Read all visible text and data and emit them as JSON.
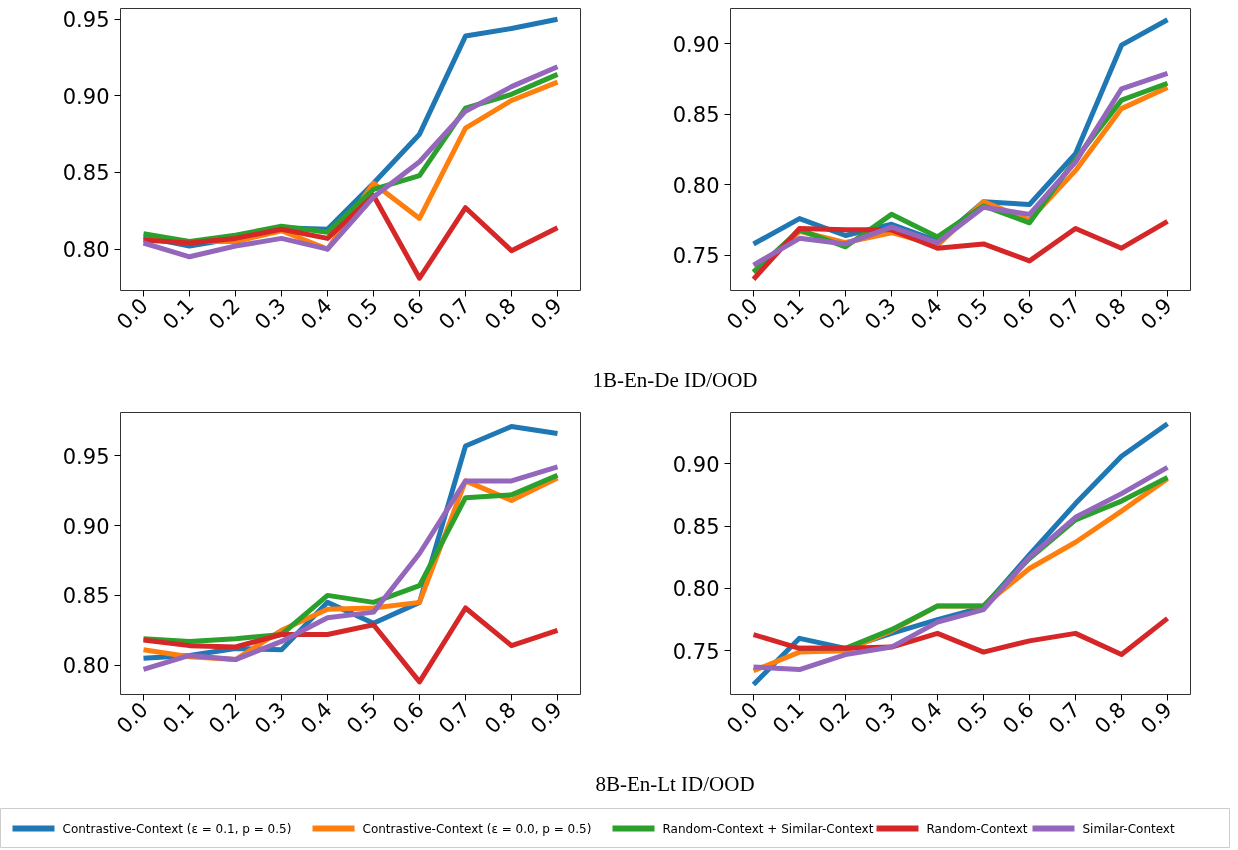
{
  "chart_data": [
    {
      "type": "line",
      "line_style": "solid",
      "grid": false,
      "legend": false,
      "categories": [
        "0.0",
        "0.1",
        "0.2",
        "0.3",
        "0.4",
        "0.5",
        "0.6",
        "0.7",
        "0.8",
        "0.9"
      ],
      "ylim": [
        0.773,
        0.957
      ],
      "yticks": [
        {
          "value": 0.8,
          "label": "0.80"
        },
        {
          "value": 0.85,
          "label": "0.85"
        },
        {
          "value": 0.9,
          "label": "0.90"
        },
        {
          "value": 0.95,
          "label": "0.95"
        }
      ],
      "series": [
        {
          "color": "#1f77b4",
          "values": [
            0.808,
            0.802,
            0.807,
            0.814,
            0.813,
            0.843,
            0.875,
            0.939,
            0.944,
            0.95
          ]
        },
        {
          "color": "#ff7f0e",
          "values": [
            0.806,
            0.805,
            0.805,
            0.812,
            0.8,
            0.843,
            0.82,
            0.879,
            0.897,
            0.909
          ]
        },
        {
          "color": "#2ca02c",
          "values": [
            0.81,
            0.805,
            0.809,
            0.815,
            0.811,
            0.839,
            0.848,
            0.892,
            0.901,
            0.914
          ]
        },
        {
          "color": "#d62728",
          "values": [
            0.806,
            0.804,
            0.807,
            0.813,
            0.807,
            0.835,
            0.781,
            0.827,
            0.799,
            0.814
          ]
        },
        {
          "color": "#9467bd",
          "values": [
            0.804,
            0.795,
            0.802,
            0.807,
            0.8,
            0.834,
            0.857,
            0.89,
            0.906,
            0.919
          ]
        }
      ],
      "annotations": [
        "1B-En-De ID/OOD"
      ]
    },
    {
      "type": "line",
      "line_style": "solid",
      "grid": false,
      "legend": false,
      "categories": [
        "0.0",
        "0.1",
        "0.2",
        "0.3",
        "0.4",
        "0.5",
        "0.6",
        "0.7",
        "0.8",
        "0.9"
      ],
      "ylim": [
        0.725,
        0.925
      ],
      "yticks": [
        {
          "value": 0.75,
          "label": "0.75"
        },
        {
          "value": 0.8,
          "label": "0.80"
        },
        {
          "value": 0.85,
          "label": "0.85"
        },
        {
          "value": 0.9,
          "label": "0.90"
        }
      ],
      "series": [
        {
          "color": "#1f77b4",
          "values": [
            0.758,
            0.776,
            0.764,
            0.772,
            0.76,
            0.788,
            0.786,
            0.822,
            0.899,
            0.917
          ]
        },
        {
          "color": "#ff7f0e",
          "values": [
            0.738,
            0.767,
            0.759,
            0.766,
            0.757,
            0.788,
            0.775,
            0.81,
            0.854,
            0.869
          ]
        },
        {
          "color": "#2ca02c",
          "values": [
            0.738,
            0.768,
            0.756,
            0.779,
            0.763,
            0.785,
            0.773,
            0.818,
            0.86,
            0.872
          ]
        },
        {
          "color": "#d62728",
          "values": [
            0.733,
            0.769,
            0.768,
            0.768,
            0.755,
            0.758,
            0.746,
            0.769,
            0.755,
            0.774
          ]
        },
        {
          "color": "#9467bd",
          "values": [
            0.743,
            0.762,
            0.758,
            0.77,
            0.759,
            0.784,
            0.779,
            0.816,
            0.868,
            0.879
          ]
        }
      ]
    },
    {
      "type": "line",
      "line_style": "solid",
      "grid": false,
      "legend": false,
      "categories": [
        "0.0",
        "0.1",
        "0.2",
        "0.3",
        "0.4",
        "0.5",
        "0.6",
        "0.7",
        "0.8",
        "0.9"
      ],
      "ylim": [
        0.779,
        0.981
      ],
      "yticks": [
        {
          "value": 0.8,
          "label": "0.80"
        },
        {
          "value": 0.85,
          "label": "0.85"
        },
        {
          "value": 0.9,
          "label": "0.90"
        },
        {
          "value": 0.95,
          "label": "0.95"
        }
      ],
      "series": [
        {
          "color": "#1f77b4",
          "values": [
            0.805,
            0.807,
            0.812,
            0.811,
            0.845,
            0.83,
            0.845,
            0.957,
            0.971,
            0.966
          ]
        },
        {
          "color": "#ff7f0e",
          "values": [
            0.811,
            0.806,
            0.804,
            0.825,
            0.84,
            0.841,
            0.845,
            0.932,
            0.918,
            0.934
          ]
        },
        {
          "color": "#2ca02c",
          "values": [
            0.819,
            0.817,
            0.819,
            0.822,
            0.85,
            0.845,
            0.857,
            0.92,
            0.922,
            0.936
          ]
        },
        {
          "color": "#d62728",
          "values": [
            0.818,
            0.814,
            0.813,
            0.822,
            0.822,
            0.829,
            0.788,
            0.841,
            0.814,
            0.825
          ]
        },
        {
          "color": "#9467bd",
          "values": [
            0.797,
            0.807,
            0.804,
            0.817,
            0.834,
            0.838,
            0.88,
            0.932,
            0.932,
            0.942
          ]
        }
      ],
      "annotations": [
        "8B-En-Lt ID/OOD"
      ]
    },
    {
      "type": "line",
      "line_style": "solid",
      "grid": false,
      "legend": "bottom",
      "categories": [
        "0.0",
        "0.1",
        "0.2",
        "0.3",
        "0.4",
        "0.5",
        "0.6",
        "0.7",
        "0.8",
        "0.9"
      ],
      "ylim": [
        0.715,
        0.941
      ],
      "yticks": [
        {
          "value": 0.75,
          "label": "0.75"
        },
        {
          "value": 0.8,
          "label": "0.80"
        },
        {
          "value": 0.85,
          "label": "0.85"
        },
        {
          "value": 0.9,
          "label": "0.90"
        }
      ],
      "series": [
        {
          "name": "Contrastive-Context (ε = 0.1, p = 0.5)",
          "color": "#1f77b4",
          "values": [
            0.723,
            0.76,
            0.752,
            0.764,
            0.775,
            0.785,
            0.827,
            0.868,
            0.906,
            0.932
          ]
        },
        {
          "name": "Contrastive-Context (ε = 0.0, p = 0.5)",
          "color": "#ff7f0e",
          "values": [
            0.734,
            0.749,
            0.75,
            0.766,
            0.786,
            0.786,
            0.816,
            0.837,
            0.862,
            0.888
          ]
        },
        {
          "name": "Random-Context + Similar-Context",
          "color": "#2ca02c",
          "values": [
            null,
            0.752,
            0.752,
            0.767,
            0.786,
            0.786,
            0.824,
            0.855,
            0.87,
            0.889
          ]
        },
        {
          "name": "Random-Context",
          "color": "#d62728",
          "values": [
            0.763,
            0.752,
            0.752,
            0.753,
            0.764,
            0.749,
            0.758,
            0.764,
            0.747,
            0.776
          ]
        },
        {
          "name": "Similar-Context",
          "color": "#9467bd",
          "values": [
            0.737,
            0.735,
            0.747,
            0.753,
            0.773,
            0.783,
            0.825,
            0.857,
            0.876,
            0.897
          ]
        }
      ]
    }
  ]
}
